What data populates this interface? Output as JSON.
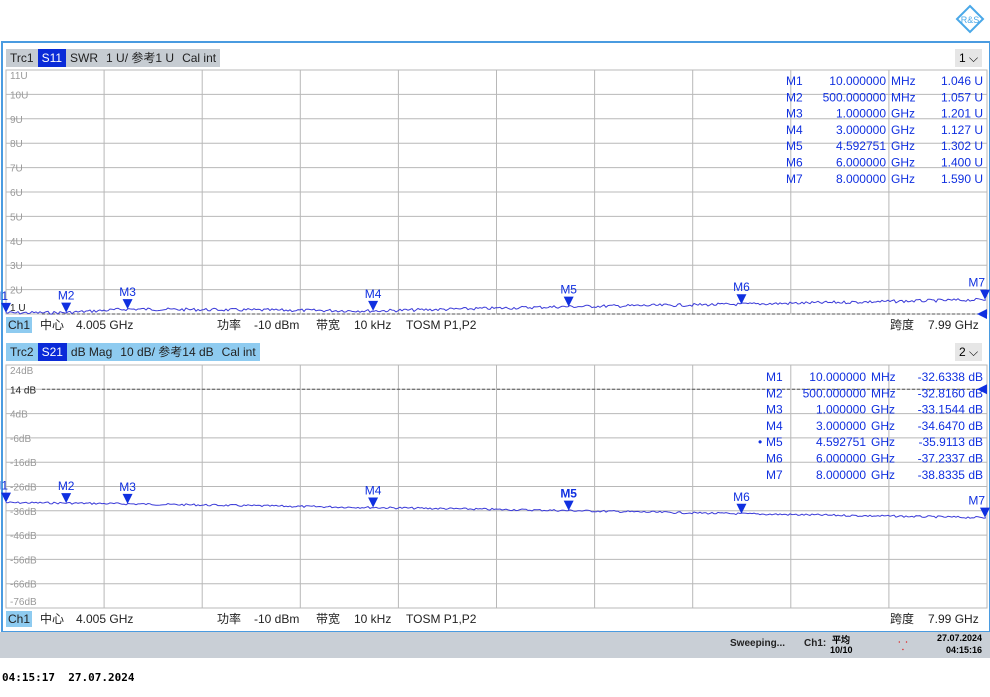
{
  "logo": "R&S",
  "trace1": {
    "name": "Trc1",
    "param": "S11",
    "format": "SWR",
    "scale": "1 U/ 参考1 U",
    "cal": "Cal int",
    "window": "1"
  },
  "trace2": {
    "name": "Trc2",
    "param": "S21",
    "format": "dB Mag",
    "scale": "10 dB/ 参考14 dB",
    "cal": "Cal int",
    "window": "2"
  },
  "channel": {
    "name": "Ch1",
    "center_label": "中心",
    "center": "4.005 GHz",
    "power_label": "功率",
    "power": "-10 dBm",
    "bw_label": "带宽",
    "bw": "10 kHz",
    "cal": "TOSM P1,P2",
    "span_label": "跨度",
    "span": "7.99 GHz"
  },
  "status": {
    "state": "Sweeping...",
    "ch": "Ch1:",
    "avg_label": "平均",
    "avg": "10/10",
    "date": "27.07.2024",
    "time": "04:15:16"
  },
  "footer_timestamp": "04:15:17  27.07.2024",
  "colors": {
    "trace": "#3a3ad8",
    "marker": "#1030e0",
    "header_active": "#0a2bd8",
    "header2_bg": "#8ecbf0",
    "header1_bg": "#c6ccd2"
  },
  "chart_data": [
    {
      "type": "line",
      "title": "Trc1 S11 SWR",
      "ylabel": "U",
      "xlim_ghz": [
        0.01,
        8.0
      ],
      "ylim": [
        1,
        11
      ],
      "yticks": [
        "11U",
        "10U",
        "9U",
        "8U",
        "7U",
        "6U",
        "5U",
        "4U",
        "3U",
        "2U",
        "1 U"
      ],
      "reference": "1 U",
      "grid": true,
      "markers": [
        {
          "name": "M1",
          "freq": "10.000000 MHz",
          "x": 0.01,
          "value": "1.046 U",
          "y": 1.046
        },
        {
          "name": "M2",
          "freq": "500.000000 MHz",
          "x": 0.5,
          "value": "1.057 U",
          "y": 1.057
        },
        {
          "name": "M3",
          "freq": "1.000000 GHz",
          "x": 1.0,
          "value": "1.201 U",
          "y": 1.201
        },
        {
          "name": "M4",
          "freq": "3.000000 GHz",
          "x": 3.0,
          "value": "1.127 U",
          "y": 1.127
        },
        {
          "name": "M5",
          "freq": "4.592751 GHz",
          "x": 4.592751,
          "value": "1.302 U",
          "y": 1.302
        },
        {
          "name": "M6",
          "freq": "6.000000 GHz",
          "x": 6.0,
          "value": "1.400 U",
          "y": 1.4
        },
        {
          "name": "M7",
          "freq": "8.000000 GHz",
          "x": 8.0,
          "value": "1.590 U",
          "y": 1.59
        }
      ]
    },
    {
      "type": "line",
      "title": "Trc2 S21 dB Mag",
      "ylabel": "dB",
      "xlim_ghz": [
        0.01,
        8.0
      ],
      "ylim": [
        -76,
        24
      ],
      "yticks": [
        "24dB",
        "14 dB",
        "4dB",
        "-6dB",
        "-16dB",
        "-26dB",
        "-36dB",
        "-46dB",
        "-56dB",
        "-66dB",
        "-76dB"
      ],
      "reference": "14 dB",
      "grid": true,
      "markers": [
        {
          "name": "M1",
          "freq": "10.000000 MHz",
          "x": 0.01,
          "value": "-32.6338 dB",
          "y": -32.6338
        },
        {
          "name": "M2",
          "freq": "500.000000 MHz",
          "x": 0.5,
          "value": "-32.8160 dB",
          "y": -32.816
        },
        {
          "name": "M3",
          "freq": "1.000000 GHz",
          "x": 1.0,
          "value": "-33.1544 dB",
          "y": -33.1544
        },
        {
          "name": "M4",
          "freq": "3.000000 GHz",
          "x": 3.0,
          "value": "-34.6470 dB",
          "y": -34.647
        },
        {
          "name": "M5",
          "freq": "4.592751 GHz",
          "x": 4.592751,
          "value": "-35.9113 dB",
          "y": -35.9113,
          "active": true
        },
        {
          "name": "M6",
          "freq": "6.000000 GHz",
          "x": 6.0,
          "value": "-37.2337 dB",
          "y": -37.2337
        },
        {
          "name": "M7",
          "freq": "8.000000 GHz",
          "x": 8.0,
          "value": "-38.8335 dB",
          "y": -38.8335
        }
      ]
    }
  ]
}
